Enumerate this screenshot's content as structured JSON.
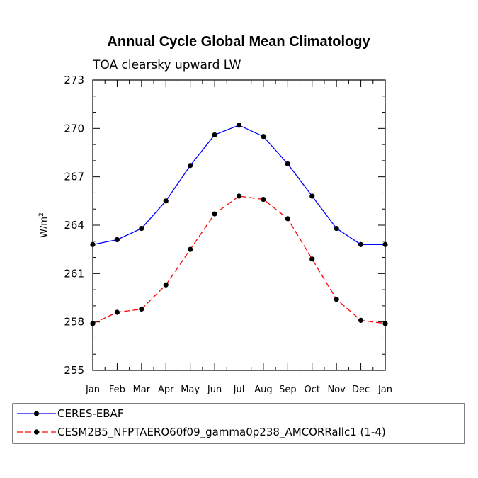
{
  "chart_data": {
    "type": "line",
    "title": "Annual Cycle Global Mean Climatology",
    "subtitle": "TOA clearsky upward LW",
    "ylabel": "W/m",
    "ylabel_superscript": "2",
    "ylim": [
      255,
      273
    ],
    "yticks": [
      255,
      258,
      261,
      264,
      267,
      270,
      273
    ],
    "ytick_labels": [
      "255",
      "258",
      "261",
      "264",
      "267",
      "270",
      "273"
    ],
    "categories": [
      "Jan",
      "Feb",
      "Mar",
      "Apr",
      "May",
      "Jun",
      "Jul",
      "Aug",
      "Sep",
      "Oct",
      "Nov",
      "Dec",
      "Jan"
    ],
    "series": [
      {
        "name": "CERES-EBAF",
        "color": "#0000ff",
        "dash": "solid",
        "marker": "circle",
        "values": [
          262.8,
          263.1,
          263.8,
          265.5,
          267.7,
          269.6,
          270.2,
          269.5,
          267.8,
          265.8,
          263.8,
          262.8,
          262.8
        ]
      },
      {
        "name": "CESM2B5_NFPTAERO60f09_gamma0p238_AMCORRallc1 (1-4)",
        "color": "#ff0000",
        "dash": "dashed",
        "marker": "circle",
        "values": [
          257.9,
          258.6,
          258.8,
          260.3,
          262.5,
          264.7,
          265.8,
          265.6,
          264.4,
          261.9,
          259.4,
          258.1,
          257.9
        ]
      }
    ],
    "legend_position": "bottom"
  }
}
